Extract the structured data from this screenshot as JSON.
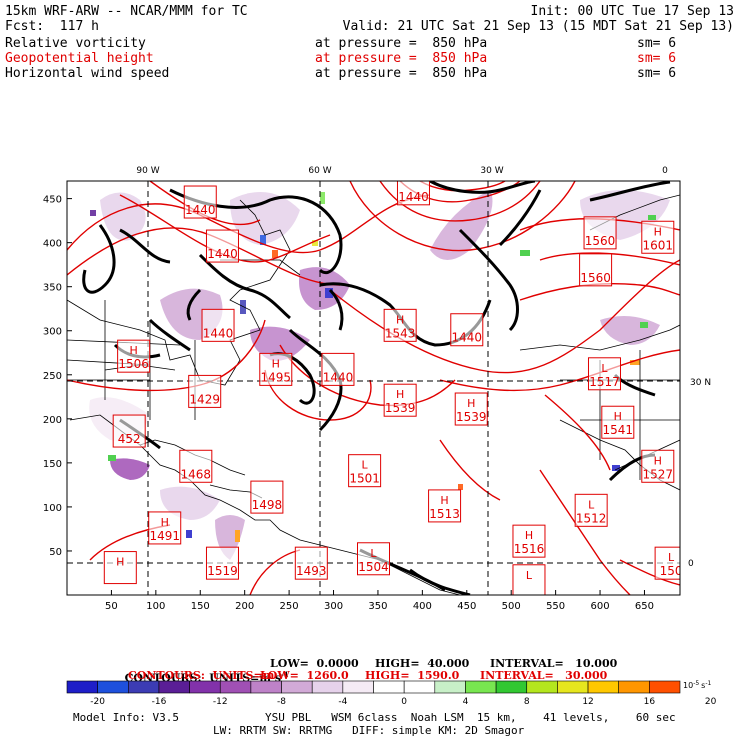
{
  "header": {
    "line1_left": "15km WRF-ARW -- NCAR/MMM for TC",
    "line1_right": "Init: 00 UTC Tue 17 Sep 13",
    "line2_left": "Fcst:  117 h",
    "line2_right": "Valid: 21 UTC Sat 21 Sep 13 (15 MDT Sat 21 Sep 13)",
    "fields": [
      {
        "name": "Relative vorticity",
        "level": "at pressure =  850 hPa",
        "smooth": "sm= 6",
        "color": "#000000"
      },
      {
        "name": "Geopotential height",
        "level": "at pressure =  850 hPa",
        "smooth": "sm= 6",
        "color": "#e00000"
      },
      {
        "name": "Horizontal wind speed",
        "level": "at pressure =  850 hPa",
        "smooth": "sm= 6",
        "color": "#000000"
      }
    ]
  },
  "map": {
    "top_lon_labels": [
      "90 W",
      "60 W",
      "30 W",
      "0"
    ],
    "right_lat_labels": [
      "30 N",
      "0"
    ],
    "x_ticks": [
      "50",
      "100",
      "150",
      "200",
      "250",
      "300",
      "350",
      "400",
      "450",
      "500",
      "550",
      "600",
      "650"
    ],
    "y_ticks": [
      "50",
      "100",
      "150",
      "200",
      "250",
      "300",
      "350",
      "400",
      "450"
    ],
    "pressure_centers": [
      {
        "type": "",
        "value": "1440",
        "x": 150,
        "y": 445
      },
      {
        "type": "",
        "value": "1440",
        "x": 175,
        "y": 395
      },
      {
        "type": "",
        "value": "1440",
        "x": 390,
        "y": 460
      },
      {
        "type": "H",
        "value": "1543",
        "x": 375,
        "y": 305
      },
      {
        "type": "",
        "value": "1440",
        "x": 450,
        "y": 300
      },
      {
        "type": "",
        "value": "1560",
        "x": 600,
        "y": 410
      },
      {
        "type": "",
        "value": "1560",
        "x": 595,
        "y": 368
      },
      {
        "type": "H",
        "value": "1601",
        "x": 665,
        "y": 405
      },
      {
        "type": "",
        "value": "1440",
        "x": 170,
        "y": 305
      },
      {
        "type": "H",
        "value": "1506",
        "x": 75,
        "y": 270
      },
      {
        "type": "H",
        "value": "1495",
        "x": 235,
        "y": 255
      },
      {
        "type": "",
        "value": "1429",
        "x": 155,
        "y": 230
      },
      {
        "type": "",
        "value": "1440",
        "x": 305,
        "y": 255
      },
      {
        "type": "H",
        "value": "1539",
        "x": 375,
        "y": 220
      },
      {
        "type": "H",
        "value": "1539",
        "x": 455,
        "y": 210
      },
      {
        "type": "L",
        "value": "1517",
        "x": 605,
        "y": 250
      },
      {
        "type": "H",
        "value": "1541",
        "x": 620,
        "y": 195
      },
      {
        "type": "",
        "value": "452",
        "x": 70,
        "y": 185
      },
      {
        "type": "",
        "value": "1468",
        "x": 145,
        "y": 145
      },
      {
        "type": "L",
        "value": "1501",
        "x": 335,
        "y": 140
      },
      {
        "type": "H",
        "value": "1527",
        "x": 665,
        "y": 145
      },
      {
        "type": "",
        "value": "1498",
        "x": 225,
        "y": 110
      },
      {
        "type": "H",
        "value": "1513",
        "x": 425,
        "y": 100
      },
      {
        "type": "L",
        "value": "1512",
        "x": 590,
        "y": 95
      },
      {
        "type": "H",
        "value": "1491",
        "x": 110,
        "y": 75
      },
      {
        "type": "H",
        "value": "1516",
        "x": 520,
        "y": 60
      },
      {
        "type": "",
        "value": "1493",
        "x": 275,
        "y": 35
      },
      {
        "type": "L",
        "value": "1504",
        "x": 345,
        "y": 40
      },
      {
        "type": "",
        "value": "1519",
        "x": 175,
        "y": 35
      },
      {
        "type": "L",
        "value": "150",
        "x": 680,
        "y": 35
      },
      {
        "type": "H",
        "value": "",
        "x": 60,
        "y": 30
      },
      {
        "type": "L",
        "value": "",
        "x": 520,
        "y": 15
      }
    ]
  },
  "colorbar": {
    "labels": [
      "-20",
      "-16",
      "-12",
      "-8",
      "-4",
      "0",
      "4",
      "8",
      "12",
      "16",
      "20"
    ],
    "colors": [
      "#1e1ec8",
      "#1e50dc",
      "#3c3cb4",
      "#5a1e96",
      "#8232aa",
      "#a050b4",
      "#be82c8",
      "#d2aad7",
      "#e6d2eb",
      "#f5ebf5",
      "#ffffff",
      "#ffffff",
      "#c8f0c8",
      "#78e650",
      "#32c832",
      "#b4e61e",
      "#e6e61e",
      "#ffc800",
      "#ff9600",
      "#ff5000"
    ],
    "unit_prefix": "10",
    "unit_exp": "-5",
    "unit_suffix": "s",
    "unit_suffix_exp": "-1"
  },
  "contours": [
    {
      "label": "CONTOURS:  UNITS=m s",
      "label_exp": "-1",
      "low": "LOW=  0.0000",
      "high": "HIGH=  40.000",
      "interval": "INTERVAL=   10.000",
      "color": "#000000"
    },
    {
      "label": "CONTOURS:  UNITS=m",
      "label_exp": "",
      "low": "LOW=  1260.0",
      "high": "HIGH=  1590.0",
      "interval": "INTERVAL=   30.000",
      "color": "#e00000"
    }
  ],
  "footer": {
    "model_info": "Model Info: V3.5",
    "line1": "YSU PBL   WSM 6class  Noah LSM  15 km,    41 levels,    60 sec",
    "line2": "LW: RRTM SW: RRTMG   DIFF: simple KM: 2D Smagor"
  }
}
